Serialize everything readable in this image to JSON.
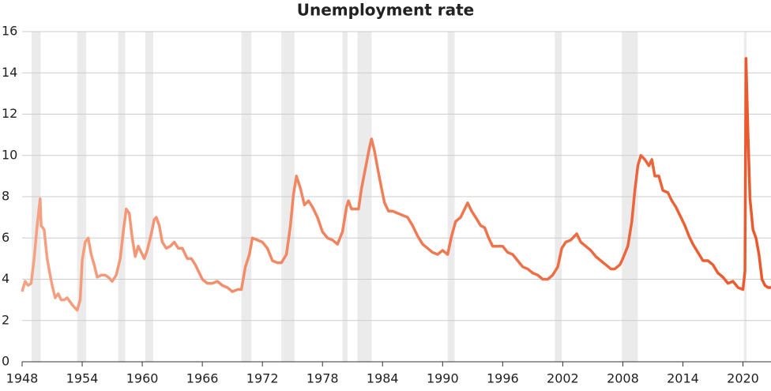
{
  "chart_data": {
    "type": "line",
    "title": "Unemployment rate",
    "xlim": [
      1948,
      2022.8
    ],
    "ylim": [
      0,
      16
    ],
    "xticks": [
      1948,
      1954,
      1960,
      1966,
      1972,
      1978,
      1984,
      1990,
      1996,
      2002,
      2008,
      2014,
      2020
    ],
    "yticks": [
      0,
      2,
      4,
      6,
      8,
      10,
      12,
      14,
      16
    ],
    "grid": true,
    "colors": [
      "#f5a283",
      "#e9582c"
    ],
    "recession_color": "#ebebeb",
    "recessions": [
      [
        1948.95,
        1949.85
      ],
      [
        1953.5,
        1954.4
      ],
      [
        1957.6,
        1958.3
      ],
      [
        1960.3,
        1961.1
      ],
      [
        1969.9,
        1970.9
      ],
      [
        1973.9,
        1975.2
      ],
      [
        1980.0,
        1980.5
      ],
      [
        1981.5,
        1982.9
      ],
      [
        1990.5,
        1991.2
      ],
      [
        2001.2,
        2001.9
      ],
      [
        2007.9,
        2009.5
      ],
      [
        2020.1,
        2020.35
      ]
    ],
    "x": [
      1948.0,
      1948.3,
      1948.6,
      1948.9,
      1949.2,
      1949.5,
      1949.8,
      1949.9,
      1950.2,
      1950.5,
      1950.8,
      1951.0,
      1951.3,
      1951.6,
      1951.9,
      1952.2,
      1952.5,
      1952.8,
      1953.1,
      1953.5,
      1953.8,
      1954.0,
      1954.3,
      1954.6,
      1954.9,
      1955.2,
      1955.5,
      1955.9,
      1956.3,
      1956.6,
      1957.0,
      1957.4,
      1957.8,
      1958.1,
      1958.4,
      1958.7,
      1959.0,
      1959.3,
      1959.6,
      1959.9,
      1960.2,
      1960.5,
      1960.9,
      1961.2,
      1961.4,
      1961.7,
      1962.0,
      1962.4,
      1962.8,
      1963.2,
      1963.6,
      1964.0,
      1964.5,
      1964.9,
      1965.3,
      1965.7,
      1966.0,
      1966.5,
      1967.0,
      1967.5,
      1968.0,
      1968.5,
      1969.0,
      1969.5,
      1969.9,
      1970.3,
      1970.7,
      1971.0,
      1971.5,
      1972.0,
      1972.5,
      1973.0,
      1973.5,
      1973.9,
      1974.4,
      1974.8,
      1975.1,
      1975.4,
      1975.8,
      1976.2,
      1976.6,
      1977.0,
      1977.5,
      1978.0,
      1978.5,
      1979.0,
      1979.5,
      1980.0,
      1980.4,
      1980.6,
      1980.9,
      1981.3,
      1981.6,
      1981.9,
      1982.3,
      1982.7,
      1982.9,
      1983.2,
      1983.5,
      1983.9,
      1984.2,
      1984.6,
      1985.0,
      1985.5,
      1986.0,
      1986.5,
      1987.0,
      1987.5,
      1988.0,
      1988.5,
      1989.0,
      1989.5,
      1990.0,
      1990.5,
      1990.9,
      1991.3,
      1991.8,
      1992.2,
      1992.5,
      1992.9,
      1993.3,
      1993.8,
      1994.2,
      1994.6,
      1995.0,
      1995.5,
      1996.0,
      1996.5,
      1997.0,
      1997.5,
      1998.0,
      1998.5,
      1999.0,
      1999.5,
      2000.0,
      2000.5,
      2001.0,
      2001.5,
      2001.9,
      2002.3,
      2002.8,
      2003.4,
      2003.8,
      2004.3,
      2004.8,
      2005.3,
      2005.8,
      2006.3,
      2006.8,
      2007.2,
      2007.7,
      2008.0,
      2008.5,
      2008.9,
      2009.2,
      2009.5,
      2009.8,
      2010.2,
      2010.6,
      2010.9,
      2011.2,
      2011.6,
      2012.0,
      2012.5,
      2012.9,
      2013.3,
      2013.8,
      2014.2,
      2014.6,
      2015.0,
      2015.5,
      2016.0,
      2016.5,
      2017.0,
      2017.5,
      2018.0,
      2018.5,
      2019.0,
      2019.5,
      2020.0,
      2020.2,
      2020.3,
      2020.5,
      2020.7,
      2021.0,
      2021.3,
      2021.6,
      2021.9,
      2022.2,
      2022.5,
      2022.8
    ],
    "values": [
      3.4,
      3.9,
      3.7,
      3.8,
      5.0,
      6.6,
      7.9,
      6.6,
      6.4,
      5.0,
      4.2,
      3.7,
      3.1,
      3.3,
      3.0,
      3.0,
      3.1,
      2.9,
      2.7,
      2.5,
      3.0,
      4.9,
      5.8,
      6.0,
      5.2,
      4.7,
      4.1,
      4.2,
      4.2,
      4.1,
      3.9,
      4.2,
      5.0,
      6.3,
      7.4,
      7.2,
      6.0,
      5.1,
      5.6,
      5.3,
      5.0,
      5.4,
      6.2,
      6.9,
      7.0,
      6.6,
      5.8,
      5.5,
      5.6,
      5.8,
      5.5,
      5.5,
      5.0,
      5.0,
      4.7,
      4.3,
      4.0,
      3.8,
      3.8,
      3.9,
      3.7,
      3.6,
      3.4,
      3.5,
      3.5,
      4.6,
      5.2,
      6.0,
      5.9,
      5.8,
      5.5,
      4.9,
      4.8,
      4.8,
      5.2,
      6.6,
      8.1,
      9.0,
      8.4,
      7.6,
      7.8,
      7.5,
      7.0,
      6.3,
      6.0,
      5.9,
      5.7,
      6.3,
      7.5,
      7.8,
      7.4,
      7.4,
      7.4,
      8.4,
      9.4,
      10.4,
      10.8,
      10.2,
      9.4,
      8.4,
      7.7,
      7.3,
      7.3,
      7.2,
      7.1,
      7.0,
      6.6,
      6.1,
      5.7,
      5.5,
      5.3,
      5.2,
      5.4,
      5.2,
      6.1,
      6.8,
      7.0,
      7.4,
      7.7,
      7.3,
      7.0,
      6.6,
      6.5,
      6.0,
      5.6,
      5.6,
      5.6,
      5.3,
      5.2,
      4.9,
      4.6,
      4.5,
      4.3,
      4.2,
      4.0,
      4.0,
      4.2,
      4.6,
      5.5,
      5.8,
      5.9,
      6.2,
      5.8,
      5.6,
      5.4,
      5.1,
      4.9,
      4.7,
      4.5,
      4.5,
      4.7,
      5.0,
      5.6,
      6.8,
      8.3,
      9.5,
      10.0,
      9.8,
      9.5,
      9.8,
      9.0,
      9.0,
      8.3,
      8.2,
      7.8,
      7.5,
      7.0,
      6.6,
      6.1,
      5.7,
      5.3,
      4.9,
      4.9,
      4.7,
      4.3,
      4.1,
      3.8,
      3.9,
      3.6,
      3.5,
      4.4,
      14.7,
      11.1,
      7.9,
      6.4,
      6.0,
      5.2,
      4.0,
      3.7,
      3.6,
      3.6
    ]
  }
}
